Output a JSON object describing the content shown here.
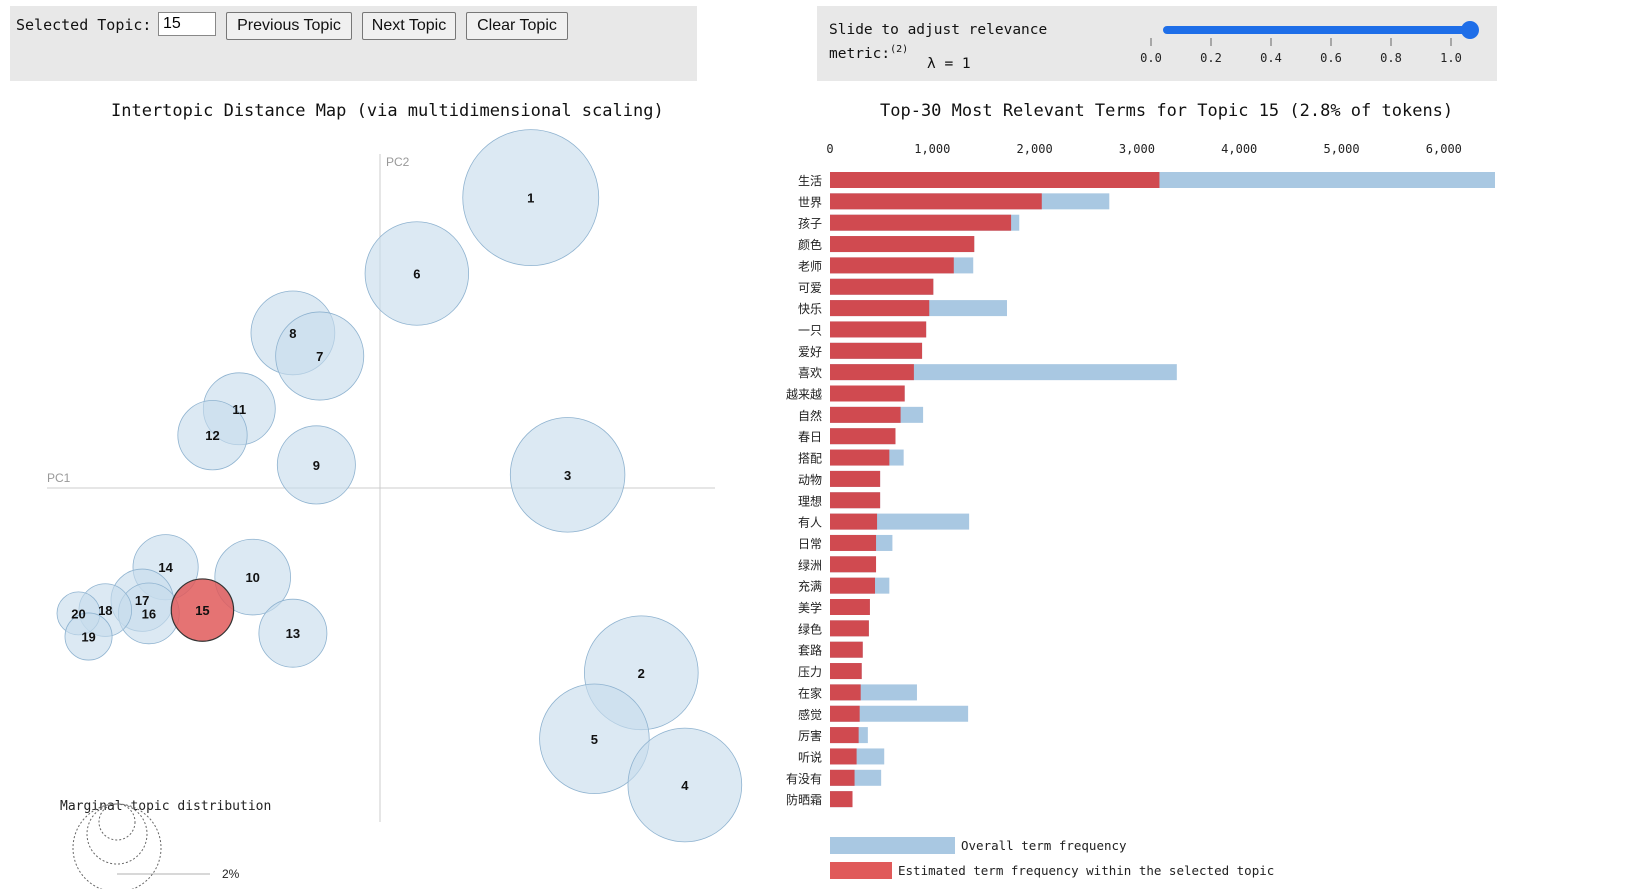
{
  "controls": {
    "selected_topic_label": "Selected Topic:",
    "selected_topic_value": "15",
    "prev_label": "Previous Topic",
    "next_label": "Next Topic",
    "clear_label": "Clear Topic",
    "lambda_label_line1": "Slide to adjust relevance",
    "lambda_label_line2": "metric:",
    "lambda_footnote": "(2)",
    "lambda_value_text": "λ  = 1",
    "lambda_value": 1.0,
    "lambda_ticks": [
      "0.0",
      "0.2",
      "0.4",
      "0.6",
      "0.8",
      "1.0"
    ]
  },
  "colors": {
    "topic_circle": "#c6dbec",
    "selected_circle": "#e05a5a",
    "overall_bar": "#a9c8e2",
    "topic_bar": "#d04a50",
    "slider": "#1e6ee8"
  },
  "chart_data": [
    {
      "type": "scatter",
      "title": "Intertopic Distance Map (via multidimensional scaling)",
      "xlabel": "PC1",
      "ylabel": "PC2",
      "xlim": [
        -1.0,
        1.0
      ],
      "ylim": [
        -1.0,
        1.0
      ],
      "selected": "15",
      "topics": [
        {
          "label": "1",
          "x": 0.45,
          "y": 0.88,
          "size": 1.0
        },
        {
          "label": "6",
          "x": 0.11,
          "y": 0.65,
          "size": 0.58
        },
        {
          "label": "8",
          "x": -0.26,
          "y": 0.47,
          "size": 0.38
        },
        {
          "label": "7",
          "x": -0.18,
          "y": 0.4,
          "size": 0.42
        },
        {
          "label": "11",
          "x": -0.42,
          "y": 0.24,
          "size": 0.28
        },
        {
          "label": "12",
          "x": -0.5,
          "y": 0.16,
          "size": 0.26
        },
        {
          "label": "9",
          "x": -0.19,
          "y": 0.07,
          "size": 0.33
        },
        {
          "label": "3",
          "x": 0.56,
          "y": 0.04,
          "size": 0.71
        },
        {
          "label": "14",
          "x": -0.64,
          "y": -0.24,
          "size": 0.23
        },
        {
          "label": "10",
          "x": -0.38,
          "y": -0.27,
          "size": 0.31
        },
        {
          "label": "17",
          "x": -0.71,
          "y": -0.34,
          "size": 0.21
        },
        {
          "label": "16",
          "x": -0.69,
          "y": -0.38,
          "size": 0.2
        },
        {
          "label": "15",
          "x": -0.53,
          "y": -0.37,
          "size": 0.21
        },
        {
          "label": "18",
          "x": -0.82,
          "y": -0.37,
          "size": 0.15
        },
        {
          "label": "20",
          "x": -0.9,
          "y": -0.38,
          "size": 0.1
        },
        {
          "label": "19",
          "x": -0.87,
          "y": -0.45,
          "size": 0.12
        },
        {
          "label": "13",
          "x": -0.26,
          "y": -0.44,
          "size": 0.25
        },
        {
          "label": "2",
          "x": 0.78,
          "y": -0.56,
          "size": 0.7
        },
        {
          "label": "5",
          "x": 0.64,
          "y": -0.76,
          "size": 0.65
        },
        {
          "label": "4",
          "x": 0.91,
          "y": -0.9,
          "size": 0.7
        }
      ],
      "legend": {
        "title": "Marginal topic distribution",
        "ticks": [
          "2%"
        ]
      }
    },
    {
      "type": "bar",
      "title": "Top-30 Most Relevant Terms for Topic 15 (2.8% of tokens)",
      "xlim": [
        0,
        6500
      ],
      "xticks": [
        0,
        1000,
        2000,
        3000,
        4000,
        5000,
        6000
      ],
      "xtick_labels": [
        "0",
        "1,000",
        "2,000",
        "3,000",
        "4,000",
        "5,000",
        "6,000"
      ],
      "categories": [
        "生活",
        "世界",
        "孩子",
        "颜色",
        "老师",
        "可爱",
        "快乐",
        "一只",
        "爱好",
        "喜欢",
        "越来越",
        "自然",
        "春日",
        "搭配",
        "动物",
        "理想",
        "有人",
        "日常",
        "绿洲",
        "充满",
        "美学",
        "绿色",
        "套路",
        "压力",
        "在家",
        "感觉",
        "厉害",
        "听说",
        "有没有",
        "防晒霜"
      ],
      "series": [
        {
          "name": "Overall term frequency",
          "values": [
            6500,
            2730,
            1850,
            1410,
            1400,
            1010,
            1730,
            940,
            900,
            3390,
            730,
            910,
            640,
            720,
            490,
            490,
            1360,
            610,
            450,
            580,
            390,
            380,
            320,
            310,
            850,
            1350,
            370,
            530,
            500,
            220
          ]
        },
        {
          "name": "Estimated term frequency within the selected topic",
          "values": [
            3220,
            2070,
            1770,
            1410,
            1210,
            1010,
            970,
            940,
            900,
            820,
            730,
            690,
            640,
            580,
            490,
            490,
            460,
            450,
            450,
            440,
            390,
            380,
            320,
            310,
            300,
            290,
            280,
            260,
            240,
            220
          ]
        }
      ],
      "legend": [
        "Overall term frequency",
        "Estimated term frequency within the selected topic"
      ]
    }
  ]
}
